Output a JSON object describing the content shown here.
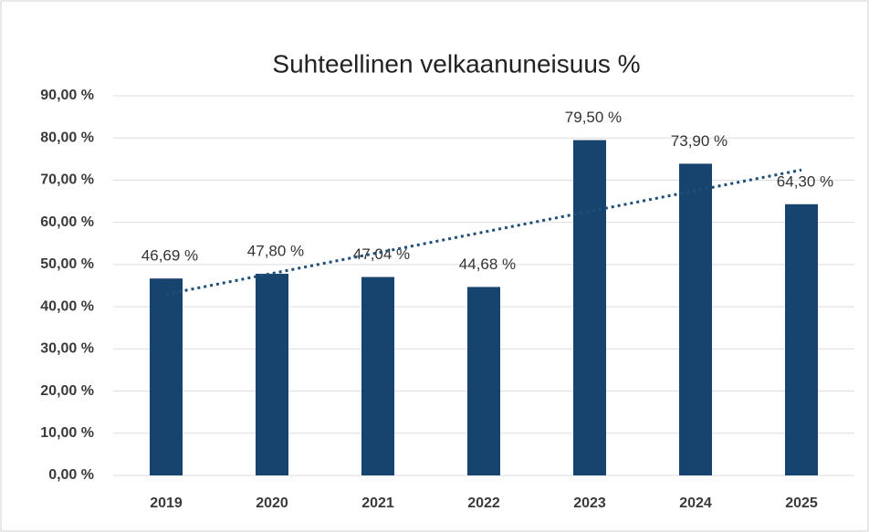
{
  "chart_data": {
    "type": "bar",
    "title": "Suhteellinen velkaanuneisuus %",
    "categories": [
      "2019",
      "2020",
      "2021",
      "2022",
      "2023",
      "2024",
      "2025"
    ],
    "values": [
      46.69,
      47.8,
      47.04,
      44.68,
      79.5,
      73.9,
      64.3
    ],
    "value_labels": [
      "46,69 %",
      "47,80 %",
      "47,04 %",
      "44,68 %",
      "79,50 %",
      "73,90 %",
      "64,30 %"
    ],
    "color": "#17446f",
    "ylim": [
      0,
      90
    ],
    "yticks": [
      {
        "value": 0,
        "label": "0,00 %"
      },
      {
        "value": 10,
        "label": "10,00 %"
      },
      {
        "value": 20,
        "label": "20,00 %"
      },
      {
        "value": 30,
        "label": "30,00 %"
      },
      {
        "value": 40,
        "label": "40,00 %"
      },
      {
        "value": 50,
        "label": "50,00 %"
      },
      {
        "value": 60,
        "label": "60,00 %"
      },
      {
        "value": 70,
        "label": "70,00 %"
      },
      {
        "value": 80,
        "label": "80,00 %"
      },
      {
        "value": 90,
        "label": "90,00 %"
      }
    ],
    "grid": true,
    "trendline": true
  }
}
